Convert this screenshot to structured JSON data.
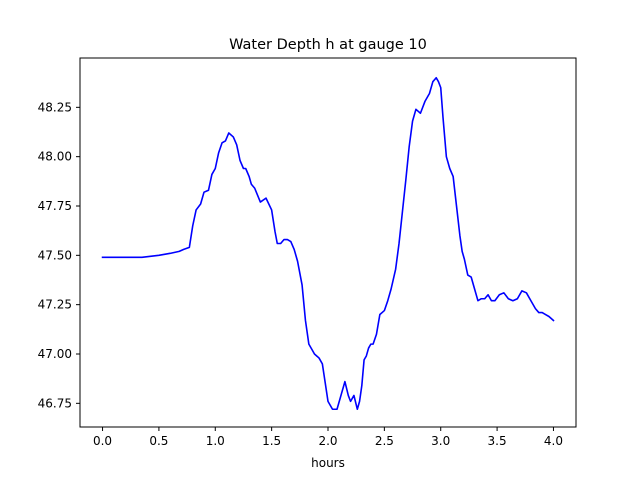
{
  "chart_data": {
    "type": "line",
    "title": "Water Depth h at gauge 10",
    "xlabel": "hours",
    "ylabel": "",
    "xlim": [
      -0.2,
      4.2
    ],
    "ylim": [
      46.63,
      48.5
    ],
    "xticks": [
      0.0,
      0.5,
      1.0,
      1.5,
      2.0,
      2.5,
      3.0,
      3.5,
      4.0
    ],
    "xtick_labels": [
      "0.0",
      "0.5",
      "1.0",
      "1.5",
      "2.0",
      "2.5",
      "3.0",
      "3.5",
      "4.0"
    ],
    "yticks": [
      46.75,
      47.0,
      47.25,
      47.5,
      47.75,
      48.0,
      48.25
    ],
    "ytick_labels": [
      "46.75",
      "47.00",
      "47.25",
      "47.50",
      "47.75",
      "48.00",
      "48.25"
    ],
    "grid": false,
    "series": [
      {
        "color": "#0000ff",
        "x": [
          0.0,
          0.2,
          0.35,
          0.5,
          0.6,
          0.68,
          0.72,
          0.77,
          0.8,
          0.83,
          0.87,
          0.9,
          0.94,
          0.97,
          1.0,
          1.03,
          1.06,
          1.09,
          1.12,
          1.16,
          1.19,
          1.22,
          1.25,
          1.27,
          1.3,
          1.32,
          1.35,
          1.4,
          1.45,
          1.5,
          1.53,
          1.55,
          1.58,
          1.61,
          1.64,
          1.67,
          1.7,
          1.73,
          1.77,
          1.8,
          1.83,
          1.86,
          1.88,
          1.9,
          1.92,
          1.95,
          2.0,
          2.04,
          2.08,
          2.12,
          2.15,
          2.18,
          2.2,
          2.23,
          2.26,
          2.28,
          2.3,
          2.32,
          2.34,
          2.36,
          2.38,
          2.4,
          2.43,
          2.46,
          2.5,
          2.53,
          2.56,
          2.6,
          2.63,
          2.66,
          2.69,
          2.72,
          2.75,
          2.78,
          2.82,
          2.86,
          2.9,
          2.93,
          2.96,
          2.98,
          3.0,
          3.02,
          3.05,
          3.08,
          3.11,
          3.14,
          3.17,
          3.19,
          3.21,
          3.24,
          3.27,
          3.3,
          3.33,
          3.36,
          3.39,
          3.42,
          3.45,
          3.48,
          3.52,
          3.56,
          3.6,
          3.64,
          3.68,
          3.72,
          3.76,
          3.8,
          3.84,
          3.87,
          3.9,
          3.93,
          3.96,
          4.0
        ],
        "y": [
          47.49,
          47.49,
          47.49,
          47.5,
          47.51,
          47.52,
          47.53,
          47.54,
          47.65,
          47.73,
          47.76,
          47.82,
          47.83,
          47.91,
          47.94,
          48.02,
          48.07,
          48.08,
          48.12,
          48.1,
          48.06,
          47.98,
          47.94,
          47.94,
          47.9,
          47.86,
          47.84,
          47.77,
          47.79,
          47.73,
          47.62,
          47.56,
          47.56,
          47.58,
          47.58,
          47.57,
          47.53,
          47.47,
          47.35,
          47.17,
          47.05,
          47.02,
          47.0,
          46.99,
          46.98,
          46.95,
          46.76,
          46.72,
          46.72,
          46.8,
          46.86,
          46.79,
          46.76,
          46.79,
          46.72,
          46.76,
          46.84,
          46.97,
          46.99,
          47.03,
          47.05,
          47.05,
          47.1,
          47.2,
          47.22,
          47.27,
          47.33,
          47.43,
          47.56,
          47.72,
          47.88,
          48.05,
          48.18,
          48.24,
          48.22,
          48.28,
          48.32,
          48.38,
          48.4,
          48.38,
          48.35,
          48.2,
          48.0,
          47.94,
          47.9,
          47.75,
          47.6,
          47.52,
          47.48,
          47.4,
          47.39,
          47.33,
          47.27,
          47.28,
          47.28,
          47.3,
          47.27,
          47.27,
          47.3,
          47.31,
          47.28,
          47.27,
          47.28,
          47.32,
          47.31,
          47.27,
          47.23,
          47.21,
          47.21,
          47.2,
          47.19,
          47.17
        ]
      }
    ]
  }
}
